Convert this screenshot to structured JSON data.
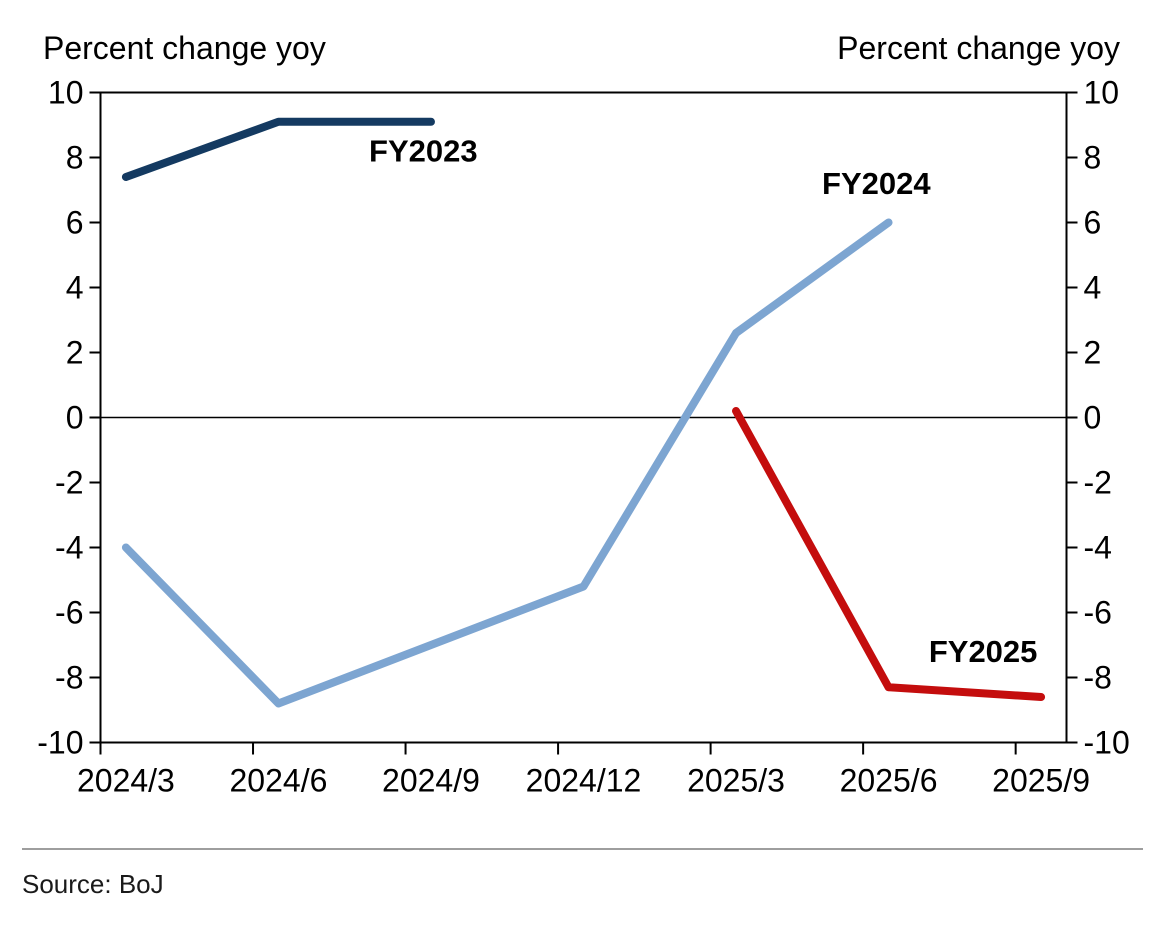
{
  "header": {
    "left_label": "Percent change yoy",
    "right_label": "Percent change yoy"
  },
  "source": {
    "text": "Source: BoJ"
  },
  "chart_data": {
    "type": "line",
    "title": "",
    "xlabel": "",
    "ylabel_left": "Percent change yoy",
    "ylabel_right": "Percent change yoy",
    "categories": [
      "2024/3",
      "2024/6",
      "2024/9",
      "2024/12",
      "2025/3",
      "2025/6",
      "2025/9"
    ],
    "ylim": [
      -10,
      10
    ],
    "y_tick_step": 2,
    "grid": false,
    "zero_line": true,
    "dual_y_axis": true,
    "legend_position": "inline-labels",
    "axis_color": "#000000",
    "x_layout": {
      "months_total": 19,
      "months_per_category": 3
    },
    "series": [
      {
        "name": "FY2023",
        "color": "#143a61",
        "label_color": "#000000",
        "start_index": 0,
        "values": [
          7.4,
          9.1,
          9.1
        ],
        "label_pos": {
          "q": 1.95,
          "v": 8.2
        }
      },
      {
        "name": "FY2024",
        "color": "#7da5d1",
        "label_color": "#7da5d1",
        "start_index": 0,
        "values": [
          -4.0,
          -8.8,
          -7.0,
          -5.2,
          2.6,
          6.0
        ],
        "label_pos": {
          "q": 4.92,
          "v": 7.2
        }
      },
      {
        "name": "FY2025",
        "color": "#c40d0d",
        "label_color": "#c40d0d",
        "start_index": 4,
        "values": [
          0.2,
          -8.3,
          -8.6
        ],
        "label_pos": {
          "q": 5.62,
          "v": -7.2
        }
      }
    ]
  }
}
